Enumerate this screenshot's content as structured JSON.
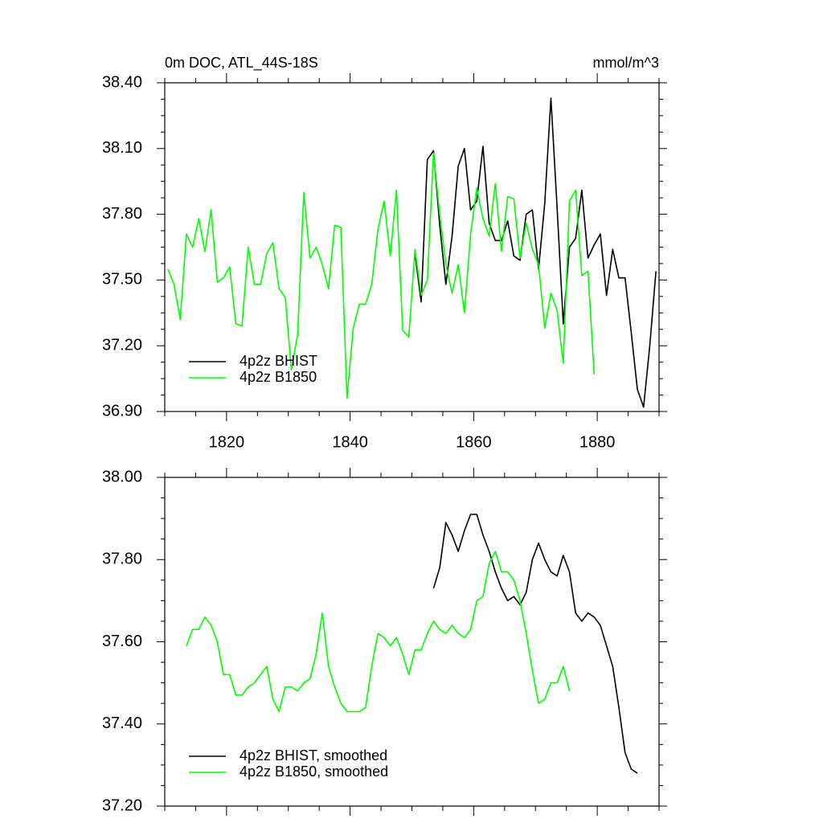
{
  "chart_data": [
    {
      "type": "line",
      "title": "0m DOC, ATL_44S-18S",
      "units": "mmol/m^3",
      "x": [
        1810.5,
        1811.5,
        1812.5,
        1813.5,
        1814.5,
        1815.5,
        1816.5,
        1817.5,
        1818.5,
        1819.5,
        1820.5,
        1821.5,
        1822.5,
        1823.5,
        1824.5,
        1825.5,
        1826.5,
        1827.5,
        1828.5,
        1829.5,
        1830.5,
        1831.5,
        1832.5,
        1833.5,
        1834.5,
        1835.5,
        1836.5,
        1837.5,
        1838.5,
        1839.5,
        1840.5,
        1841.5,
        1842.5,
        1843.5,
        1844.5,
        1845.5,
        1846.5,
        1847.5,
        1848.5,
        1849.5,
        1850.5,
        1851.5,
        1852.5,
        1853.5,
        1854.5,
        1855.5,
        1856.5,
        1857.5,
        1858.5,
        1859.5,
        1860.5,
        1861.5,
        1862.5,
        1863.5,
        1864.5,
        1865.5,
        1866.5,
        1867.5,
        1868.5,
        1869.5,
        1870.5,
        1871.5,
        1872.5,
        1873.5,
        1874.5,
        1875.5,
        1876.5,
        1877.5,
        1878.5,
        1879.5,
        1880.5,
        1881.5,
        1882.5,
        1883.5,
        1884.5,
        1885.5,
        1886.5,
        1887.5,
        1888.5,
        1889.5
      ],
      "series": [
        {
          "name": "4p2z BHIST",
          "color": "#000000",
          "values": [
            null,
            null,
            null,
            null,
            null,
            null,
            null,
            null,
            null,
            null,
            null,
            null,
            null,
            null,
            null,
            null,
            null,
            null,
            null,
            null,
            null,
            null,
            null,
            null,
            null,
            null,
            null,
            null,
            null,
            null,
            null,
            null,
            null,
            null,
            null,
            null,
            null,
            null,
            null,
            null,
            37.62,
            37.4,
            38.05,
            38.09,
            37.75,
            37.48,
            37.7,
            38.02,
            38.1,
            37.82,
            37.86,
            38.11,
            37.76,
            37.68,
            37.68,
            37.77,
            37.61,
            37.59,
            37.8,
            37.82,
            37.55,
            37.85,
            38.33,
            37.83,
            37.3,
            37.65,
            37.69,
            37.91,
            37.6,
            37.66,
            37.71,
            37.43,
            37.64,
            37.51,
            37.51,
            37.26,
            37.0,
            36.92,
            37.2,
            37.54
          ]
        },
        {
          "name": "4p2z B1850",
          "color": "#00ff00",
          "values": [
            37.55,
            37.48,
            37.32,
            37.71,
            37.65,
            37.78,
            37.63,
            37.82,
            37.49,
            37.51,
            37.56,
            37.3,
            37.29,
            37.65,
            37.48,
            37.48,
            37.62,
            37.67,
            37.46,
            37.42,
            37.09,
            37.25,
            37.9,
            37.6,
            37.65,
            37.57,
            37.46,
            37.75,
            37.74,
            36.96,
            37.28,
            37.39,
            37.39,
            37.48,
            37.73,
            37.86,
            37.61,
            37.91,
            37.27,
            37.24,
            37.64,
            37.43,
            37.5,
            38.08,
            37.8,
            37.57,
            37.44,
            37.57,
            37.35,
            37.71,
            37.92,
            37.78,
            37.7,
            37.94,
            37.63,
            37.88,
            37.87,
            37.6,
            37.76,
            37.64,
            37.57,
            37.28,
            37.44,
            37.36,
            37.12,
            37.86,
            37.91,
            37.52,
            37.54,
            37.07,
            null,
            null,
            null,
            null,
            null,
            null,
            null,
            null,
            null,
            null
          ]
        }
      ],
      "xlim": [
        1810,
        1890
      ],
      "xticks": [
        1820,
        1840,
        1860,
        1880
      ],
      "xtick_labels": true,
      "ylim": [
        36.9,
        38.4
      ],
      "yticks": [
        {
          "value": 36.9,
          "label": "36.90"
        },
        {
          "value": 37.2,
          "label": "37.20"
        },
        {
          "value": 37.5,
          "label": "37.50"
        },
        {
          "value": 37.8,
          "label": "37.80"
        },
        {
          "value": 38.1,
          "label": "38.10"
        },
        {
          "value": 38.4,
          "label": "38.40"
        }
      ],
      "legend": "lower left",
      "grid": false
    },
    {
      "type": "line",
      "x": [
        1810.5,
        1811.5,
        1812.5,
        1813.5,
        1814.5,
        1815.5,
        1816.5,
        1817.5,
        1818.5,
        1819.5,
        1820.5,
        1821.5,
        1822.5,
        1823.5,
        1824.5,
        1825.5,
        1826.5,
        1827.5,
        1828.5,
        1829.5,
        1830.5,
        1831.5,
        1832.5,
        1833.5,
        1834.5,
        1835.5,
        1836.5,
        1837.5,
        1838.5,
        1839.5,
        1840.5,
        1841.5,
        1842.5,
        1843.5,
        1844.5,
        1845.5,
        1846.5,
        1847.5,
        1848.5,
        1849.5,
        1850.5,
        1851.5,
        1852.5,
        1853.5,
        1854.5,
        1855.5,
        1856.5,
        1857.5,
        1858.5,
        1859.5,
        1860.5,
        1861.5,
        1862.5,
        1863.5,
        1864.5,
        1865.5,
        1866.5,
        1867.5,
        1868.5,
        1869.5,
        1870.5,
        1871.5,
        1872.5,
        1873.5,
        1874.5,
        1875.5,
        1876.5,
        1877.5,
        1878.5,
        1879.5,
        1880.5,
        1881.5,
        1882.5,
        1883.5,
        1884.5,
        1885.5,
        1886.5,
        1887.5,
        1888.5,
        1889.5
      ],
      "series": [
        {
          "name": "4p2z BHIST, smoothed",
          "color": "#000000",
          "values": [
            null,
            null,
            null,
            null,
            null,
            null,
            null,
            null,
            null,
            null,
            null,
            null,
            null,
            null,
            null,
            null,
            null,
            null,
            null,
            null,
            null,
            null,
            null,
            null,
            null,
            null,
            null,
            null,
            null,
            null,
            null,
            null,
            null,
            null,
            null,
            null,
            null,
            null,
            null,
            null,
            null,
            null,
            null,
            37.73,
            37.78,
            37.89,
            37.86,
            37.82,
            37.87,
            37.91,
            37.91,
            37.86,
            37.82,
            37.77,
            37.73,
            37.7,
            37.71,
            37.69,
            37.72,
            37.8,
            37.84,
            37.8,
            37.77,
            37.76,
            37.81,
            37.77,
            37.67,
            37.65,
            37.67,
            37.66,
            37.64,
            37.59,
            37.54,
            37.44,
            37.33,
            37.29,
            37.28,
            null,
            null,
            null
          ]
        },
        {
          "name": "4p2z B1850, smoothed",
          "color": "#00ff00",
          "values": [
            null,
            null,
            null,
            37.59,
            37.63,
            37.63,
            37.66,
            37.64,
            37.6,
            37.52,
            37.52,
            37.47,
            37.47,
            37.49,
            37.5,
            37.52,
            37.54,
            37.46,
            37.43,
            37.49,
            37.49,
            37.48,
            37.5,
            37.51,
            37.57,
            37.67,
            37.54,
            37.49,
            37.45,
            37.43,
            37.43,
            37.43,
            37.44,
            37.54,
            37.62,
            37.61,
            37.59,
            37.61,
            37.57,
            37.52,
            37.58,
            37.58,
            37.62,
            37.65,
            37.63,
            37.62,
            37.64,
            37.62,
            37.61,
            37.63,
            37.7,
            37.71,
            37.79,
            37.82,
            37.77,
            37.77,
            37.75,
            37.7,
            37.62,
            37.53,
            37.45,
            37.46,
            37.5,
            37.5,
            37.54,
            37.48,
            null,
            null,
            null,
            null,
            null,
            null,
            null,
            null,
            null,
            null,
            null,
            null,
            null,
            null
          ]
        }
      ],
      "xlim": [
        1810,
        1890
      ],
      "xticks": [
        1820,
        1840,
        1860,
        1880
      ],
      "xtick_labels": false,
      "ylim": [
        37.2,
        38.0
      ],
      "yticks": [
        {
          "value": 37.2,
          "label": "37.20"
        },
        {
          "value": 37.4,
          "label": "37.40"
        },
        {
          "value": 37.6,
          "label": "37.60"
        },
        {
          "value": 37.8,
          "label": "37.80"
        },
        {
          "value": 38.0,
          "label": "38.00"
        }
      ],
      "legend": "lower left",
      "grid": false
    }
  ]
}
